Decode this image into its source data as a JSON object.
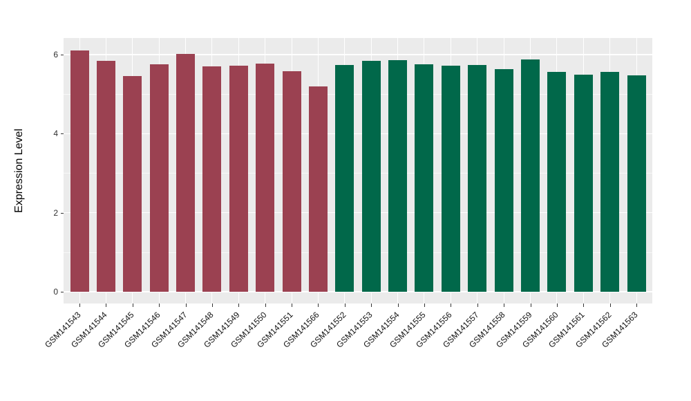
{
  "figure": {
    "background": "#FFFFFF",
    "panel_background": "#EBEBEB",
    "grid_major_color": "#FFFFFF",
    "grid_minor_color": "#FFFFFF",
    "tick_color": "#333333",
    "axis_text_color": "#303030"
  },
  "chart_data": {
    "type": "bar",
    "title": "",
    "xlabel": "",
    "ylabel": "Expression Level",
    "categories": [
      "GSM141543",
      "GSM141544",
      "GSM141545",
      "GSM141546",
      "GSM141547",
      "GSM141548",
      "GSM141549",
      "GSM141550",
      "GSM141551",
      "GSM141566",
      "GSM141552",
      "GSM141553",
      "GSM141554",
      "GSM141555",
      "GSM141556",
      "GSM141557",
      "GSM141558",
      "GSM141559",
      "GSM141560",
      "GSM141561",
      "GSM141562",
      "GSM141563"
    ],
    "values": [
      6.1,
      5.85,
      5.46,
      5.76,
      6.01,
      5.71,
      5.72,
      5.78,
      5.58,
      5.2,
      5.74,
      5.85,
      5.86,
      5.76,
      5.72,
      5.74,
      5.64,
      5.88,
      5.56,
      5.5,
      5.57,
      5.48
    ],
    "bar_groups": [
      0,
      0,
      0,
      0,
      0,
      0,
      0,
      0,
      0,
      0,
      1,
      1,
      1,
      1,
      1,
      1,
      1,
      1,
      1,
      1,
      1,
      1
    ],
    "group_colors": [
      "#9B4151",
      "#01684A"
    ],
    "yticks": [
      0,
      2,
      4,
      6
    ],
    "yticks_minor": [
      1,
      3,
      5
    ],
    "ylim": [
      -0.3,
      6.42
    ],
    "grid": true,
    "legend": false,
    "x_tick_rotation": 45
  }
}
